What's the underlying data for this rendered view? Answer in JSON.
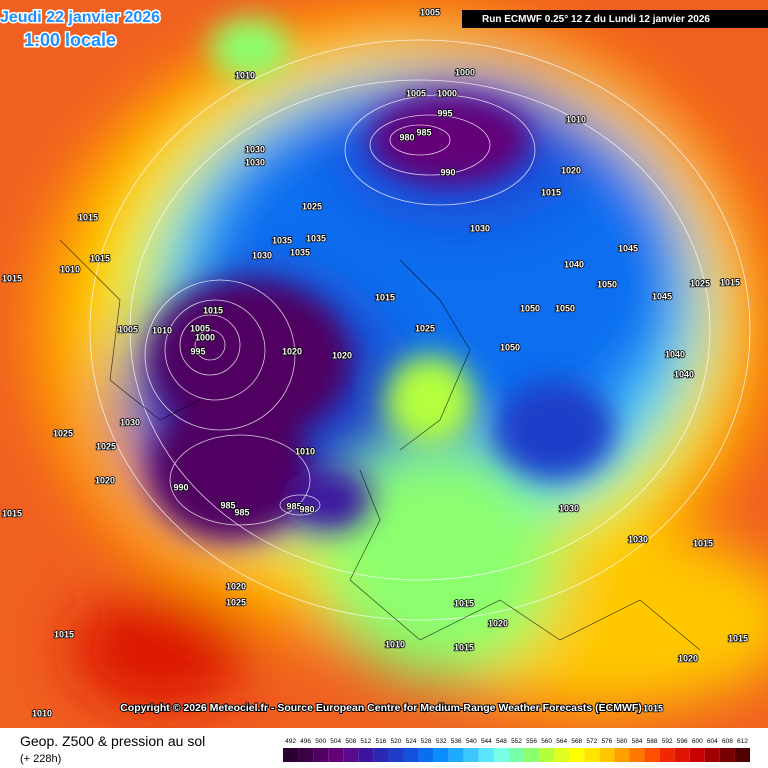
{
  "header": {
    "date": "Jeudi 22 janvier 2026",
    "time": "1:00 locale",
    "run": "Run ECMWF 0.25° 12 Z du Lundi 12 janvier 2026"
  },
  "copyright": "Copyright © 2026 Meteociel.fr - Source European Centre for Medium-Range Weather Forecasts (ECMWF)",
  "footer": {
    "title": "Geop. Z500 & pression au sol",
    "subtitle": "(+ 228h)"
  },
  "colorbar": {
    "labels": [
      "492",
      "496",
      "500",
      "504",
      "508",
      "512",
      "516",
      "520",
      "524",
      "528",
      "532",
      "536",
      "540",
      "544",
      "548",
      "552",
      "556",
      "560",
      "564",
      "568",
      "572",
      "576",
      "580",
      "584",
      "588",
      "592",
      "596",
      "600",
      "604",
      "608",
      "612"
    ],
    "colors": [
      "#2a0030",
      "#3c0046",
      "#500060",
      "#640078",
      "#5a0a8c",
      "#3c14a0",
      "#2828b4",
      "#1e3cc8",
      "#1450dc",
      "#0a6ef0",
      "#0a8cff",
      "#1eaaff",
      "#3cc8ff",
      "#5ae6ff",
      "#78ffe6",
      "#78ffaa",
      "#8cff6e",
      "#b4ff3c",
      "#dcff1e",
      "#ffff00",
      "#ffe600",
      "#ffc800",
      "#ffa000",
      "#ff7800",
      "#ff5000",
      "#f02800",
      "#dc1400",
      "#c80000",
      "#a00000",
      "#780000",
      "#500000"
    ]
  },
  "pressure_labels": [
    "1005",
    "1010",
    "1030",
    "1030",
    "1000",
    "1005",
    "1000",
    "995",
    "985",
    "980",
    "990",
    "1010",
    "1020",
    "1015",
    "1030",
    "1045",
    "1040",
    "1050",
    "1045",
    "1025",
    "1015",
    "1015",
    "1010",
    "1015",
    "1015",
    "1025",
    "1035",
    "1035",
    "1035",
    "1030",
    "1015",
    "1015",
    "1005",
    "1000",
    "995",
    "1010",
    "1005",
    "1020",
    "1020",
    "1025",
    "1050",
    "1050",
    "1050",
    "1040",
    "1040",
    "1030",
    "1025",
    "1025",
    "1020",
    "1015",
    "990",
    "985",
    "985",
    "985",
    "980",
    "1010",
    "1030",
    "1030",
    "1020",
    "1025",
    "1015",
    "1015",
    "1020",
    "1010",
    "1015",
    "1015",
    "1015",
    "1020",
    "1010",
    "1015"
  ]
}
